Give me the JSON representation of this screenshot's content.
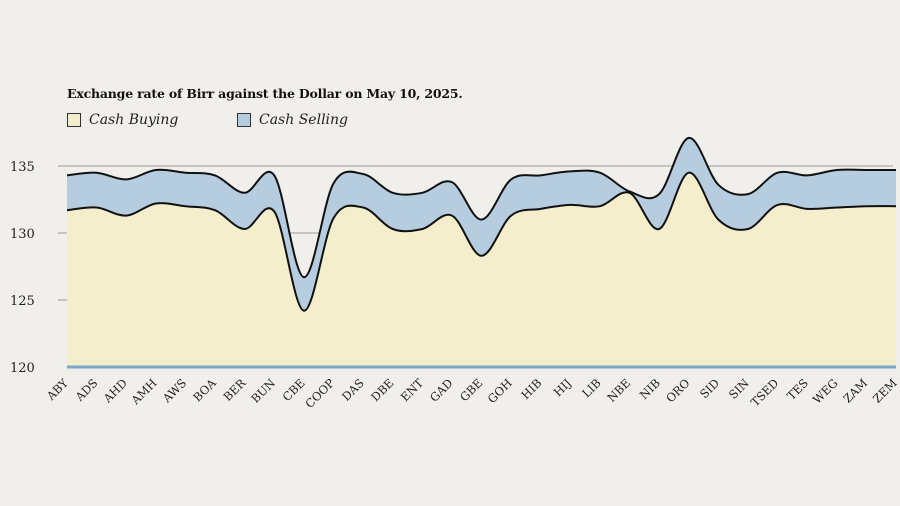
{
  "chart_data": {
    "type": "area",
    "title": "Exchange rate of Birr against the Dollar on May 10, 2025.",
    "xlabel": "",
    "ylabel": "",
    "ylim": [
      120,
      135.5
    ],
    "yticks": [
      120,
      125,
      130,
      135
    ],
    "grid": true,
    "legend_placement": "top-left",
    "categories": [
      "ABY",
      "ADS",
      "AHD",
      "AMH",
      "AWS",
      "BOA",
      "BER",
      "BUN",
      "CBE",
      "COOP",
      "DAS",
      "DBE",
      "ENT",
      "GAD",
      "GBE",
      "GOH",
      "HIB",
      "HIJ",
      "LIB",
      "NBE",
      "NIB",
      "ORO",
      "SID",
      "SIN",
      "TSED",
      "TES",
      "WEG",
      "ZAM",
      "ZEM"
    ],
    "series": [
      {
        "name": "Cash Buying",
        "color": "#f5eecc",
        "values": [
          131.7,
          131.9,
          131.3,
          132.2,
          132.0,
          131.7,
          130.3,
          131.6,
          124.2,
          131.1,
          131.9,
          130.3,
          130.3,
          131.3,
          128.3,
          131.3,
          131.8,
          132.1,
          132.0,
          133.0,
          130.3,
          134.5,
          131.0,
          130.3,
          132.1,
          131.8,
          131.9,
          132.0,
          132.0
        ]
      },
      {
        "name": "Cash Selling",
        "color": "#b6cde0",
        "values": [
          134.3,
          134.5,
          134.0,
          134.7,
          134.5,
          134.3,
          133.0,
          134.3,
          126.7,
          133.7,
          134.4,
          133.0,
          133.0,
          133.8,
          131.0,
          134.0,
          134.3,
          134.6,
          134.5,
          133.1,
          132.9,
          137.1,
          133.6,
          132.9,
          134.5,
          134.3,
          134.7,
          134.7,
          134.7
        ]
      }
    ]
  },
  "colors": {
    "background": "#f0efec",
    "grid": "#9a9a9a",
    "outline": "#111111",
    "baseline": "#7aa6c8"
  }
}
